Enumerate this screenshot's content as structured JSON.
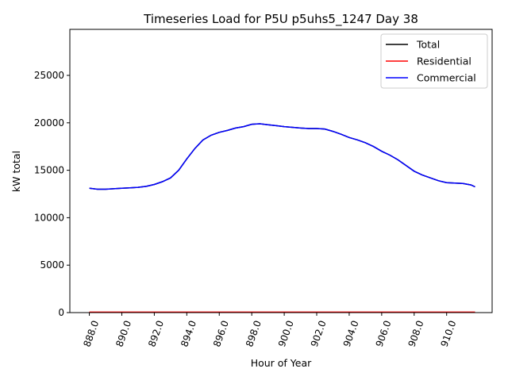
{
  "chart_data": {
    "type": "line",
    "title": "Timeseries Load for P5U p5uhs5_1247  Day 38",
    "xlabel": "Hour of Year",
    "ylabel": "kW total",
    "xlim": [
      886.8,
      912.8
    ],
    "ylim": [
      0,
      29850
    ],
    "xticks": [
      888,
      890,
      892,
      894,
      896,
      898,
      900,
      902,
      904,
      906,
      908,
      910
    ],
    "xtick_labels": [
      "888.0",
      "890.0",
      "892.0",
      "894.0",
      "896.0",
      "898.0",
      "900.0",
      "902.0",
      "904.0",
      "906.0",
      "908.0",
      "910.0"
    ],
    "yticks": [
      0,
      5000,
      10000,
      15000,
      20000,
      25000
    ],
    "ytick_labels": [
      "0",
      "5000",
      "10000",
      "15000",
      "20000",
      "25000"
    ],
    "legend_position": "top-right",
    "x": [
      888,
      888.5,
      889,
      889.5,
      890,
      890.5,
      891,
      891.5,
      892,
      892.5,
      893,
      893.5,
      894,
      894.5,
      895,
      895.5,
      896,
      896.5,
      897,
      897.5,
      898,
      898.5,
      899,
      899.5,
      900,
      900.5,
      901,
      901.5,
      902,
      902.5,
      903,
      903.5,
      904,
      904.5,
      905,
      905.5,
      906,
      906.5,
      907,
      907.5,
      908,
      908.5,
      909,
      909.5,
      910,
      910.5,
      911,
      911.5,
      911.75
    ],
    "series": [
      {
        "name": "Total",
        "color": "#000000",
        "values": [
          13100,
          13000,
          13000,
          13050,
          13100,
          13150,
          13200,
          13300,
          13500,
          13800,
          14200,
          15000,
          16200,
          17300,
          18200,
          18700,
          19000,
          19200,
          19450,
          19600,
          19850,
          19900,
          19800,
          19700,
          19600,
          19520,
          19450,
          19400,
          19400,
          19350,
          19100,
          18800,
          18450,
          18200,
          17900,
          17500,
          17000,
          16600,
          16100,
          15500,
          14900,
          14500,
          14200,
          13900,
          13700,
          13650,
          13600,
          13450,
          13250
        ]
      },
      {
        "name": "Residential",
        "color": "#ff0000",
        "values": [
          50,
          50,
          50,
          50,
          50,
          50,
          50,
          50,
          50,
          50,
          50,
          50,
          50,
          50,
          50,
          50,
          50,
          50,
          50,
          50,
          50,
          50,
          50,
          50,
          50,
          50,
          50,
          50,
          50,
          50,
          50,
          50,
          50,
          50,
          50,
          50,
          50,
          50,
          50,
          50,
          50,
          50,
          50,
          50,
          50,
          50,
          50,
          50,
          50
        ]
      },
      {
        "name": "Commercial",
        "color": "#0000ff",
        "values": [
          13100,
          13000,
          13000,
          13050,
          13100,
          13150,
          13200,
          13300,
          13500,
          13800,
          14200,
          15000,
          16200,
          17300,
          18200,
          18700,
          19000,
          19200,
          19450,
          19600,
          19850,
          19900,
          19800,
          19700,
          19600,
          19520,
          19450,
          19400,
          19400,
          19350,
          19100,
          18800,
          18450,
          18200,
          17900,
          17500,
          17000,
          16600,
          16100,
          15500,
          14900,
          14500,
          14200,
          13900,
          13700,
          13650,
          13600,
          13450,
          13250
        ]
      }
    ]
  }
}
